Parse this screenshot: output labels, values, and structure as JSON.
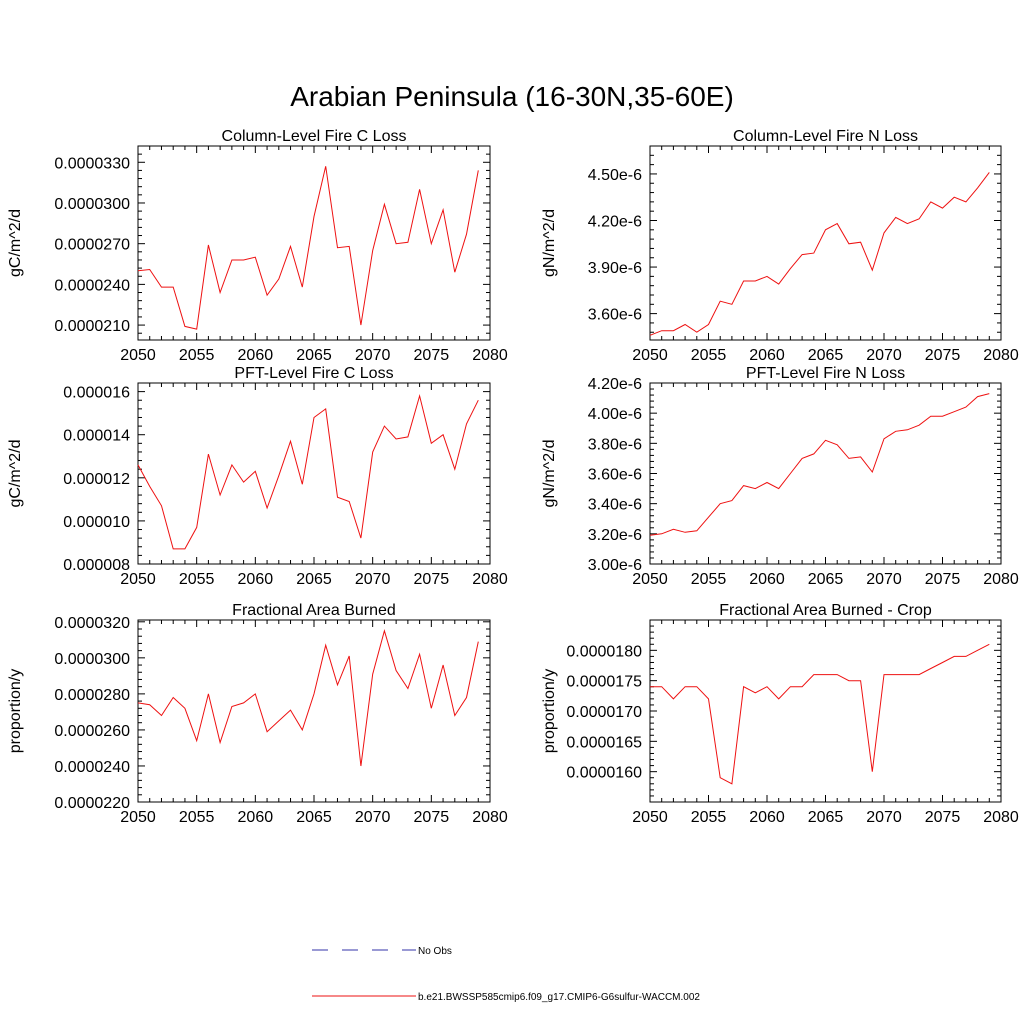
{
  "title": "Arabian Peninsula (16-30N,35-60E)",
  "legend": {
    "placement": "bottom-center",
    "entries": [
      {
        "label": "No Obs",
        "color": "#3333aa",
        "style": "dashed"
      },
      {
        "label": "b.e21.BWSSP585cmip6.f09_g17.CMIP6-G6sulfur-WACCM.002",
        "color": "#ee1111",
        "style": "solid"
      }
    ]
  },
  "chart_data": [
    {
      "type": "line",
      "title": "Column-Level Fire C Loss",
      "ylabel": "gC/m^2/d",
      "xlim": [
        2050,
        2080
      ],
      "ylim": [
        1.99e-05,
        3.42e-05
      ],
      "xticks": [
        "2050",
        "2055",
        "2060",
        "2065",
        "2070",
        "2075",
        "2080"
      ],
      "yticks": [
        2.1e-05,
        2.4e-05,
        2.7e-05,
        3e-05,
        3.3e-05
      ],
      "ytick_labels": [
        "0.0000210",
        "0.0000240",
        "0.0000270",
        "0.0000300",
        "0.0000330"
      ],
      "x": [
        2050,
        2051,
        2052,
        2053,
        2054,
        2055,
        2056,
        2057,
        2058,
        2059,
        2060,
        2061,
        2062,
        2063,
        2064,
        2065,
        2066,
        2067,
        2068,
        2069,
        2070,
        2071,
        2072,
        2073,
        2074,
        2075,
        2076,
        2077,
        2078,
        2079
      ],
      "series": [
        {
          "color": "#ee1111",
          "values": [
            2.5e-05,
            2.51e-05,
            2.38e-05,
            2.38e-05,
            2.09e-05,
            2.07e-05,
            2.69e-05,
            2.34e-05,
            2.58e-05,
            2.58e-05,
            2.6e-05,
            2.32e-05,
            2.44e-05,
            2.68e-05,
            2.38e-05,
            2.9e-05,
            3.27e-05,
            2.67e-05,
            2.68e-05,
            2.1e-05,
            2.65e-05,
            2.99e-05,
            2.7e-05,
            2.71e-05,
            3.1e-05,
            2.7e-05,
            2.95e-05,
            2.49e-05,
            2.77e-05,
            3.24e-05
          ]
        }
      ]
    },
    {
      "type": "line",
      "title": "Column-Level Fire N Loss",
      "ylabel": "gN/m^2/d",
      "xlim": [
        2050,
        2080
      ],
      "ylim": [
        3.43e-06,
        4.68e-06
      ],
      "xticks": [
        "2050",
        "2055",
        "2060",
        "2065",
        "2070",
        "2075",
        "2080"
      ],
      "yticks": [
        3.6e-06,
        3.9e-06,
        4.2e-06,
        4.5e-06
      ],
      "ytick_labels": [
        "3.60e-6",
        "3.90e-6",
        "4.20e-6",
        "4.50e-6"
      ],
      "x": [
        2050,
        2051,
        2052,
        2053,
        2054,
        2055,
        2056,
        2057,
        2058,
        2059,
        2060,
        2061,
        2062,
        2063,
        2064,
        2065,
        2066,
        2067,
        2068,
        2069,
        2070,
        2071,
        2072,
        2073,
        2074,
        2075,
        2076,
        2077,
        2078,
        2079
      ],
      "series": [
        {
          "color": "#ee1111",
          "values": [
            3.46e-06,
            3.49e-06,
            3.49e-06,
            3.53e-06,
            3.48e-06,
            3.53e-06,
            3.68e-06,
            3.66e-06,
            3.81e-06,
            3.81e-06,
            3.84e-06,
            3.79e-06,
            3.89e-06,
            3.98e-06,
            3.99e-06,
            4.14e-06,
            4.18e-06,
            4.05e-06,
            4.06e-06,
            3.88e-06,
            4.12e-06,
            4.22e-06,
            4.18e-06,
            4.21e-06,
            4.32e-06,
            4.28e-06,
            4.35e-06,
            4.32e-06,
            4.41e-06,
            4.51e-06
          ]
        }
      ]
    },
    {
      "type": "line",
      "title": "PFT-Level Fire C Loss",
      "ylabel": "gC/m^2/d",
      "xlim": [
        2050,
        2080
      ],
      "ylim": [
        8e-06,
        1.64e-05
      ],
      "xticks": [
        "2050",
        "2055",
        "2060",
        "2065",
        "2070",
        "2075",
        "2080"
      ],
      "yticks": [
        8e-06,
        1e-05,
        1.2e-05,
        1.4e-05,
        1.6e-05
      ],
      "ytick_labels": [
        "0.000008",
        "0.000010",
        "0.000012",
        "0.000014",
        "0.000016"
      ],
      "x": [
        2050,
        2051,
        2052,
        2053,
        2054,
        2055,
        2056,
        2057,
        2058,
        2059,
        2060,
        2061,
        2062,
        2063,
        2064,
        2065,
        2066,
        2067,
        2068,
        2069,
        2070,
        2071,
        2072,
        2073,
        2074,
        2075,
        2076,
        2077,
        2078,
        2079
      ],
      "series": [
        {
          "color": "#ee1111",
          "values": [
            1.26e-05,
            1.16e-05,
            1.07e-05,
            8.7e-06,
            8.7e-06,
            9.7e-06,
            1.31e-05,
            1.12e-05,
            1.26e-05,
            1.18e-05,
            1.23e-05,
            1.06e-05,
            1.21e-05,
            1.37e-05,
            1.17e-05,
            1.48e-05,
            1.52e-05,
            1.11e-05,
            1.09e-05,
            9.2e-06,
            1.32e-05,
            1.44e-05,
            1.38e-05,
            1.39e-05,
            1.58e-05,
            1.36e-05,
            1.4e-05,
            1.24e-05,
            1.45e-05,
            1.56e-05
          ]
        }
      ]
    },
    {
      "type": "line",
      "title": "PFT-Level Fire N Loss",
      "ylabel": "gN/m^2/d",
      "xlim": [
        2050,
        2080
      ],
      "ylim": [
        3e-06,
        4.2e-06
      ],
      "xticks": [
        "2050",
        "2055",
        "2060",
        "2065",
        "2070",
        "2075",
        "2080"
      ],
      "yticks": [
        3e-06,
        3.2e-06,
        3.4e-06,
        3.6e-06,
        3.8e-06,
        4e-06,
        4.2e-06
      ],
      "ytick_labels": [
        "3.00e-6",
        "3.20e-6",
        "3.40e-6",
        "3.60e-6",
        "3.80e-6",
        "4.00e-6",
        "4.20e-6"
      ],
      "x": [
        2050,
        2051,
        2052,
        2053,
        2054,
        2055,
        2056,
        2057,
        2058,
        2059,
        2060,
        2061,
        2062,
        2063,
        2064,
        2065,
        2066,
        2067,
        2068,
        2069,
        2070,
        2071,
        2072,
        2073,
        2074,
        2075,
        2076,
        2077,
        2078,
        2079
      ],
      "series": [
        {
          "color": "#ee1111",
          "values": [
            3.19e-06,
            3.2e-06,
            3.23e-06,
            3.21e-06,
            3.22e-06,
            3.31e-06,
            3.4e-06,
            3.42e-06,
            3.52e-06,
            3.5e-06,
            3.54e-06,
            3.5e-06,
            3.6e-06,
            3.7e-06,
            3.73e-06,
            3.82e-06,
            3.79e-06,
            3.7e-06,
            3.71e-06,
            3.61e-06,
            3.83e-06,
            3.88e-06,
            3.89e-06,
            3.92e-06,
            3.98e-06,
            3.98e-06,
            4.01e-06,
            4.04e-06,
            4.11e-06,
            4.13e-06
          ]
        }
      ]
    },
    {
      "type": "line",
      "title": "Fractional Area Burned",
      "ylabel": "proportion/y",
      "xlim": [
        2050,
        2080
      ],
      "ylim": [
        2.2e-05,
        3.21e-05
      ],
      "xticks": [
        "2050",
        "2055",
        "2060",
        "2065",
        "2070",
        "2075",
        "2080"
      ],
      "yticks": [
        2.2e-05,
        2.4e-05,
        2.6e-05,
        2.8e-05,
        3e-05,
        3.2e-05
      ],
      "ytick_labels": [
        "0.0000220",
        "0.0000240",
        "0.0000260",
        "0.0000280",
        "0.0000300",
        "0.0000320"
      ],
      "x": [
        2050,
        2051,
        2052,
        2053,
        2054,
        2055,
        2056,
        2057,
        2058,
        2059,
        2060,
        2061,
        2062,
        2063,
        2064,
        2065,
        2066,
        2067,
        2068,
        2069,
        2070,
        2071,
        2072,
        2073,
        2074,
        2075,
        2076,
        2077,
        2078,
        2079
      ],
      "series": [
        {
          "color": "#ee1111",
          "values": [
            2.75e-05,
            2.74e-05,
            2.68e-05,
            2.78e-05,
            2.72e-05,
            2.54e-05,
            2.8e-05,
            2.53e-05,
            2.73e-05,
            2.75e-05,
            2.8e-05,
            2.59e-05,
            2.65e-05,
            2.71e-05,
            2.6e-05,
            2.8e-05,
            3.07e-05,
            2.85e-05,
            3.01e-05,
            2.4e-05,
            2.91e-05,
            3.15e-05,
            2.93e-05,
            2.83e-05,
            3.02e-05,
            2.72e-05,
            2.96e-05,
            2.68e-05,
            2.78e-05,
            3.09e-05
          ]
        }
      ]
    },
    {
      "type": "line",
      "title": "Fractional Area Burned - Crop",
      "ylabel": "proportion/y",
      "xlim": [
        2050,
        2080
      ],
      "ylim": [
        1.55e-05,
        1.85e-05
      ],
      "xticks": [
        "2050",
        "2055",
        "2060",
        "2065",
        "2070",
        "2075",
        "2080"
      ],
      "yticks": [
        1.6e-05,
        1.65e-05,
        1.7e-05,
        1.75e-05,
        1.8e-05
      ],
      "ytick_labels": [
        "0.0000160",
        "0.0000165",
        "0.0000170",
        "0.0000175",
        "0.0000180"
      ],
      "x": [
        2050,
        2051,
        2052,
        2053,
        2054,
        2055,
        2056,
        2057,
        2058,
        2059,
        2060,
        2061,
        2062,
        2063,
        2064,
        2065,
        2066,
        2067,
        2068,
        2069,
        2070,
        2071,
        2072,
        2073,
        2074,
        2075,
        2076,
        2077,
        2078,
        2079
      ],
      "series": [
        {
          "color": "#ee1111",
          "values": [
            1.74e-05,
            1.74e-05,
            1.72e-05,
            1.74e-05,
            1.74e-05,
            1.72e-05,
            1.59e-05,
            1.58e-05,
            1.74e-05,
            1.73e-05,
            1.74e-05,
            1.72e-05,
            1.74e-05,
            1.74e-05,
            1.76e-05,
            1.76e-05,
            1.76e-05,
            1.75e-05,
            1.75e-05,
            1.6e-05,
            1.76e-05,
            1.76e-05,
            1.76e-05,
            1.76e-05,
            1.77e-05,
            1.78e-05,
            1.79e-05,
            1.79e-05,
            1.8e-05,
            1.81e-05
          ]
        }
      ]
    }
  ]
}
